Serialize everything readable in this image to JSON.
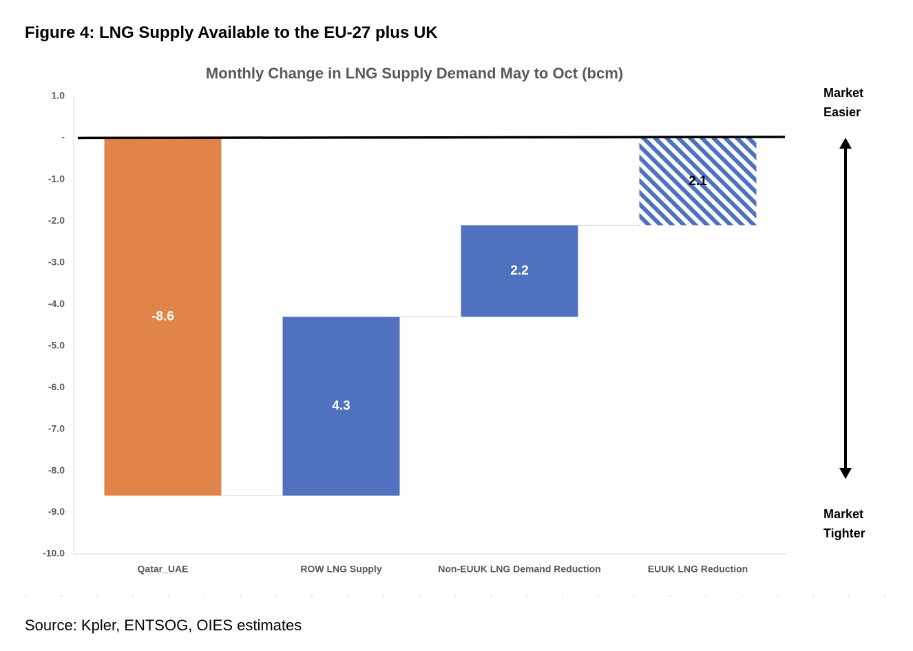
{
  "figure_title": "Figure 4: LNG Supply Available to the EU-27 plus UK",
  "source": "Source: Kpler, ENTSOG, OIES estimates",
  "chart_data": {
    "type": "waterfall",
    "title": "Monthly Change in LNG Supply Demand May to Oct (bcm)",
    "categories": [
      "Qatar_UAE",
      "ROW LNG Supply",
      "Non-EUUK LNG Demand Reduction",
      "EUUK LNG Reduction"
    ],
    "values": [
      -8.6,
      4.3,
      2.2,
      2.1
    ],
    "colors": [
      "#e0844a",
      "#4f71be",
      "#4f71be",
      "#4f71be"
    ],
    "hatched": [
      false,
      false,
      false,
      true
    ],
    "ylim": [
      -10,
      1
    ],
    "yticks": [
      {
        "value": 1,
        "label": "1.0"
      },
      {
        "value": 0,
        "label": "-"
      },
      {
        "value": -1,
        "label": "-1.0"
      },
      {
        "value": -2,
        "label": "-2.0"
      },
      {
        "value": -3,
        "label": "-3.0"
      },
      {
        "value": -4,
        "label": "-4.0"
      },
      {
        "value": -5,
        "label": "-5.0"
      },
      {
        "value": -6,
        "label": "-6.0"
      },
      {
        "value": -7,
        "label": "-7.0"
      },
      {
        "value": -8,
        "label": "-8.0"
      },
      {
        "value": -9,
        "label": "-9.0"
      },
      {
        "value": -10,
        "label": "-10.0"
      }
    ],
    "annotations": {
      "top": "Market Easier",
      "bottom": "Market Tighter"
    }
  }
}
